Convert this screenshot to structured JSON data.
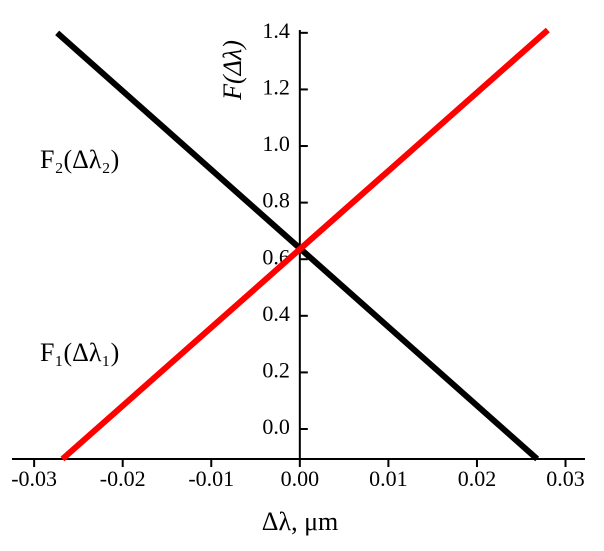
{
  "chart_data": {
    "type": "line",
    "xlabel": "Δλ, μm",
    "ylabel": "F(Δλ)",
    "annotations": [
      "F₂(Δλ₂)",
      "F₁(Δλ₁)"
    ],
    "xlim": [
      -0.0325,
      0.0322
    ],
    "ylim": [
      -0.106,
      1.41
    ],
    "xticks": [
      -0.03,
      -0.02,
      -0.01,
      {
        "value": 0,
        "label": "0.00"
      },
      0.01,
      0.02,
      0.03
    ],
    "yticks": [
      {
        "value": 0,
        "label": "0.0"
      },
      0.2,
      0.4,
      0.6,
      0.8,
      {
        "value": 1,
        "label": "1.0"
      },
      1.2,
      1.4
    ],
    "series": [
      {
        "color": "#000000",
        "x": [
          -0.0274,
          0.0268
        ],
        "values": [
          1.4,
          -0.106
        ]
      },
      {
        "color": "#ff0000",
        "x": [
          -0.0268,
          0.028
        ],
        "values": [
          -0.106,
          1.41
        ]
      }
    ]
  }
}
